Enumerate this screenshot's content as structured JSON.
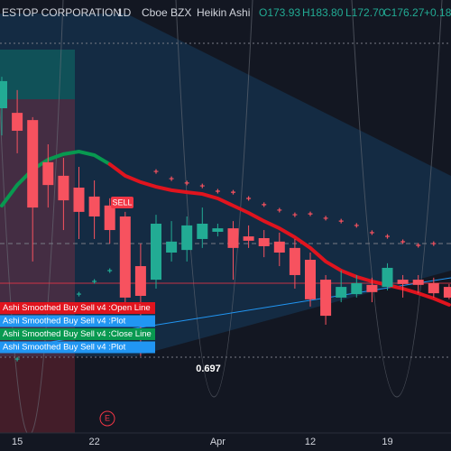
{
  "chart_data": {
    "type": "candlestick",
    "header": {
      "symbol": "ESTOP CORPORATION",
      "interval": "1D",
      "exchange": "Cboe BZX",
      "style": "Heikin Ashi",
      "ohlc": [
        "O173.93",
        "H183.80",
        "L172.70",
        "C176.27"
      ],
      "change": "+0.18"
    },
    "legend": [
      {
        "text": "Ashi Smoothed Buy Sell v4 :Open Line",
        "color": "#e0141e"
      },
      {
        "text": "Ashi Smoothed Buy Sell v4 :Plot",
        "color": "#2196f3"
      },
      {
        "text": "Ashi Smoothed Buy Sell v4 :Close Line",
        "color": "#089950"
      },
      {
        "text": "Ashi Smoothed Buy Sell v4 :Plot",
        "color": "#2196f3"
      }
    ],
    "signal_label": "SELL",
    "level_label": "0.697",
    "event_marker": "E",
    "categories": [
      null,
      "15",
      null,
      null,
      null,
      null,
      "22",
      null,
      null,
      null,
      null,
      null,
      null,
      null,
      "Apr",
      null,
      null,
      null,
      null,
      null,
      "12",
      null,
      null,
      null,
      null,
      "19",
      null,
      null,
      null,
      null
    ],
    "open": [
      238.5,
      236.9,
      234.4,
      219.8,
      215.1,
      211.0,
      207.9,
      204.8,
      201.0,
      183.8,
      179.1,
      188.5,
      189.4,
      193.2,
      195.7,
      196.9,
      194.1,
      193.5,
      192.3,
      190.1,
      186.0,
      179.1,
      172.9,
      174.1,
      177.3,
      176.6,
      179.1,
      179.1,
      177.9,
      176.6
    ],
    "high": [
      249.4,
      244.8,
      235.4,
      226.0,
      221.3,
      218.2,
      213.5,
      207.3,
      202.6,
      191.6,
      201.6,
      199.4,
      201.0,
      204.1,
      198.5,
      199.4,
      197.9,
      196.3,
      195.4,
      193.2,
      188.5,
      180.7,
      182.3,
      180.7,
      179.8,
      184.8,
      180.7,
      180.7,
      179.8,
      177.6
    ],
    "low": [
      229.1,
      222.9,
      185.4,
      204.1,
      196.3,
      193.2,
      193.2,
      191.6,
      168.2,
      152.6,
      176.0,
      185.4,
      185.4,
      190.1,
      194.1,
      179.1,
      190.1,
      186.9,
      183.8,
      176.0,
      169.8,
      163.5,
      171.3,
      172.9,
      171.3,
      175.4,
      172.9,
      174.4,
      172.9,
      172.3
    ],
    "close": [
      247.9,
      230.7,
      204.1,
      211.9,
      206.6,
      202.6,
      201.0,
      196.3,
      172.9,
      173.5,
      198.5,
      192.3,
      197.9,
      198.5,
      196.9,
      190.1,
      192.6,
      190.7,
      188.5,
      180.7,
      172.3,
      166.6,
      176.6,
      177.9,
      174.8,
      183.2,
      177.6,
      177.3,
      174.4,
      172.9
    ],
    "up_color": "#22ab94",
    "down_color": "#f7525f",
    "lines": [
      {
        "color": "#089950",
        "values": [
          204.75,
          211.9,
          217.25,
          220.7,
          222.6,
          223.5,
          222.25,
          219.1,
          null,
          null,
          null,
          null,
          null,
          null,
          null,
          null,
          null,
          null,
          null,
          null,
          null,
          null,
          null,
          null,
          null,
          null,
          null,
          null,
          null,
          null
        ]
      },
      {
        "color": "#e0141e",
        "values": [
          null,
          null,
          null,
          null,
          null,
          null,
          null,
          219.1,
          215.1,
          212.9,
          211.3,
          210.1,
          209.4,
          208.8,
          207.25,
          204.75,
          202.25,
          199.4,
          196.9,
          193.8,
          190.1,
          185.4,
          182.25,
          180.1,
          178.5,
          177.25,
          176.0,
          174.4,
          172.6,
          170.4
        ]
      }
    ],
    "crosses": [
      {
        "color": "#f7525f",
        "values": [
          null,
          null,
          null,
          null,
          null,
          null,
          null,
          null,
          null,
          null,
          216.6,
          214.1,
          212.6,
          211.6,
          209.75,
          209.4,
          207.25,
          205.1,
          203.2,
          201.6,
          201.9,
          200.4,
          199.4,
          197.9,
          195.4,
          194.1,
          192.25,
          191.0,
          191.6,
          null
        ]
      },
      {
        "color": "#22ab94",
        "values": [
          null,
          151.6,
          null,
          null,
          null,
          174.1,
          178.5,
          182.25,
          null,
          null,
          null,
          null,
          null,
          null,
          null,
          null,
          null,
          null,
          null,
          null,
          null,
          null,
          null,
          null,
          null,
          null,
          null,
          null,
          null,
          null
        ]
      }
    ],
    "ylim": [
      126,
      276
    ]
  }
}
